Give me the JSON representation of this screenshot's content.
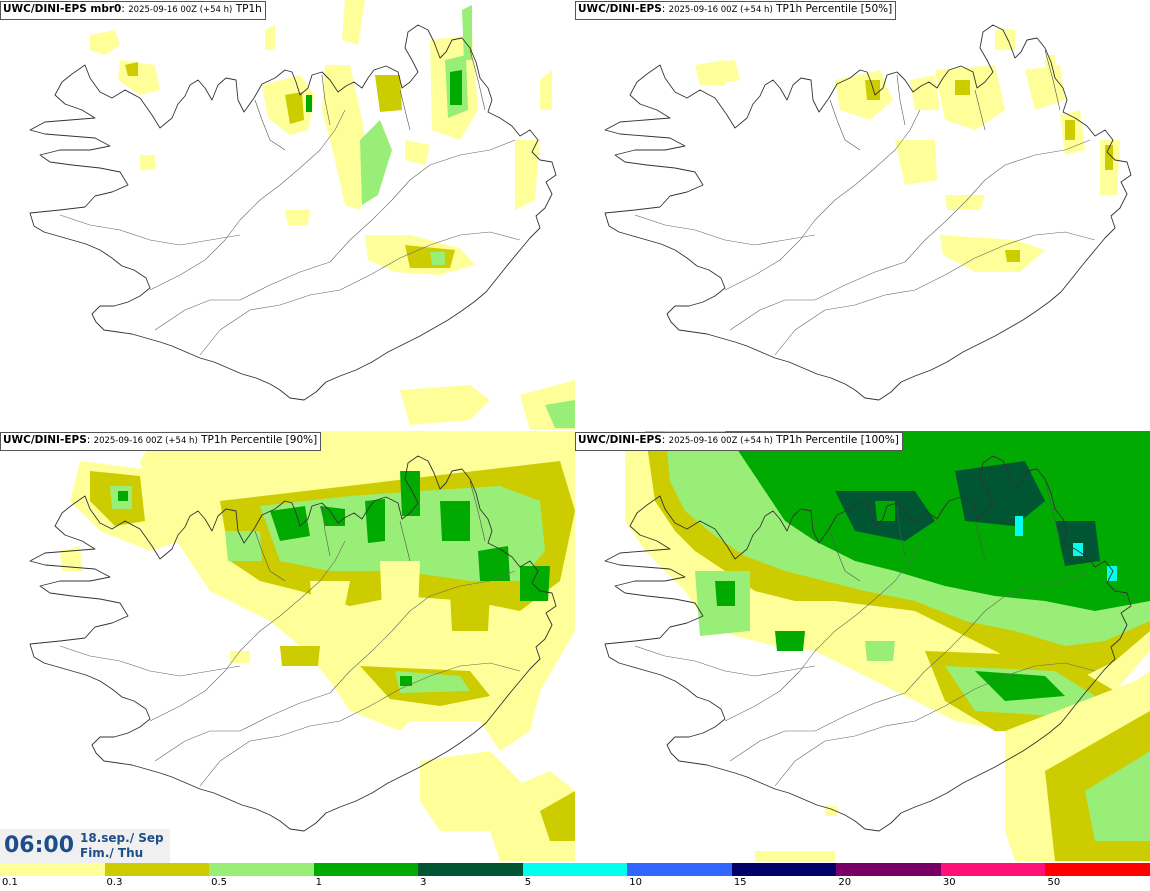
{
  "panels": [
    {
      "model": "UWC/DINI-EPS mbr0",
      "meta": "2025-09-16 00Z (+54 h)",
      "field": "TP1h"
    },
    {
      "model": "UWC/DINI-EPS",
      "meta": "2025-09-16 00Z (+54 h)",
      "field": "TP1h Percentile [50%]"
    },
    {
      "model": "UWC/DINI-EPS",
      "meta": "2025-09-16 00Z (+54 h)",
      "field": "TP1h Percentile [90%]"
    },
    {
      "model": "UWC/DINI-EPS",
      "meta": "2025-09-16 00Z (+54 h)",
      "field": "TP1h Percentile [100%]"
    }
  ],
  "valid_time": {
    "time": "06:00",
    "date_line1": "18.sep./ Sep",
    "date_line2": "Fim./ Thu"
  },
  "legend": {
    "levels": [
      "0.1",
      "0.3",
      "0.5",
      "1",
      "3",
      "5",
      "10",
      "15",
      "20",
      "30",
      "50"
    ],
    "colors": [
      "#ffff99",
      "#cccc00",
      "#99ee77",
      "#00aa00",
      "#005533",
      "#00ffee",
      "#3366ff",
      "#000066",
      "#770066",
      "#ff1177",
      "#ff0000"
    ]
  },
  "colors": {
    "coast": "#333333",
    "title_text": "#1d4e89"
  }
}
